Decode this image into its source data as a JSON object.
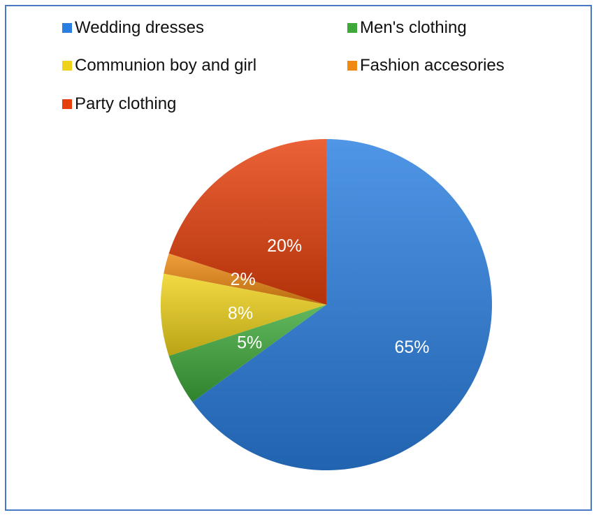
{
  "chart_data": {
    "type": "pie",
    "title": "",
    "legend_position": "top",
    "slices": [
      {
        "label": "Wedding dresses",
        "value": 65,
        "display": "65%",
        "color": "#2a7fe0"
      },
      {
        "label": "Men's clothing",
        "value": 5,
        "display": "5%",
        "color": "#3ea83a"
      },
      {
        "label": "Communion boy and girl",
        "value": 8,
        "display": "8%",
        "color": "#efd21b"
      },
      {
        "label": "Fashion accesories",
        "value": 2,
        "display": "2%",
        "color": "#ee8a12"
      },
      {
        "label": "Party clothing",
        "value": 20,
        "display": "20%",
        "color": "#e6400c"
      }
    ],
    "legend": [
      {
        "label": "Wedding dresses",
        "color": "#2a7fe0"
      },
      {
        "label": "Men's clothing",
        "color": "#3ea83a"
      },
      {
        "label": "Communion boy and girl",
        "color": "#efd21b"
      },
      {
        "label": "Fashion accesories",
        "color": "#ee8a12"
      },
      {
        "label": "Party clothing",
        "color": "#e6400c"
      }
    ],
    "frame_color": "#4a78c8"
  }
}
